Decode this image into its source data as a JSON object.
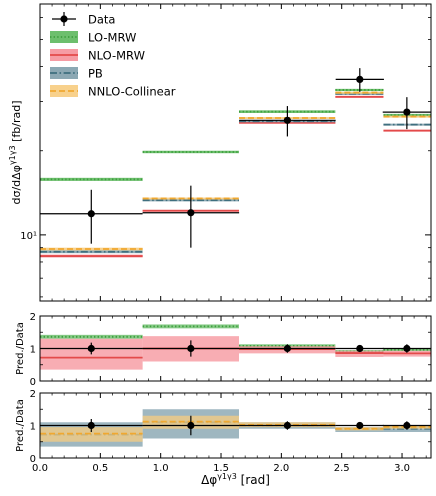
{
  "chart_data": {
    "type": "line",
    "title": "",
    "xlabel": "Δφ^{γ1γ3} [rad]",
    "bins": [
      [
        0.0,
        0.8505
      ],
      [
        0.8505,
        1.649
      ],
      [
        1.649,
        2.4475
      ],
      [
        2.4475,
        2.846
      ],
      [
        2.846,
        3.24
      ]
    ],
    "xlim": [
      0.0,
      3.24
    ],
    "xticks": [
      "0.0",
      "0.5",
      "1.0",
      "1.5",
      "2.0",
      "2.5",
      "3.0"
    ],
    "legend": {
      "position": "upper-left",
      "entries": [
        "Data",
        "LO-MRW",
        "NLO-MRW",
        "PB",
        "NNLO-Collinear"
      ]
    },
    "panels": [
      {
        "name": "main",
        "ylabel": "dσ/dΔφ^{γ1γ3} [fb/rad]",
        "yscale": "log",
        "ylim": [
          5.8,
          67
        ],
        "yticks": [
          "10¹"
        ],
        "data": {
          "name": "Data",
          "color": "#000000",
          "x": [
            0.425,
            1.25,
            2.05,
            2.65,
            3.04
          ],
          "y": [
            11.9,
            12.0,
            25.7,
            36.0,
            27.5
          ],
          "yerr_low": [
            2.6,
            3.0,
            3.2,
            3.5,
            3.6
          ],
          "yerr_high": [
            2.6,
            3.0,
            3.2,
            3.5,
            3.6
          ],
          "xerr": [
            0.425,
            0.4,
            0.4,
            0.2,
            0.2
          ]
        },
        "series": [
          {
            "name": "LO-MRW",
            "color": "#3e9e3e",
            "linestyle": "dotted",
            "band_color": "#5db85d",
            "values": [
              15.8,
              19.8,
              27.6,
              33.0,
              26.8
            ],
            "band": [
              [
                15.6,
                16.0
              ],
              [
                19.6,
                20.0
              ],
              [
                27.3,
                27.9
              ],
              [
                32.7,
                33.3
              ],
              [
                26.5,
                27.1
              ]
            ]
          },
          {
            "name": "NLO-MRW",
            "color": "#e34a4a",
            "linestyle": "solid",
            "band_color": "#f5919a",
            "values": [
              8.4,
              12.2,
              25.2,
              31.2,
              23.6
            ],
            "band": [
              [
                8.3,
                8.5
              ],
              [
                12.1,
                12.3
              ],
              [
                25.0,
                25.4
              ],
              [
                31.0,
                31.4
              ],
              [
                23.4,
                23.8
              ]
            ]
          },
          {
            "name": "PB",
            "color": "#3f6f7f",
            "linestyle": "dashdot",
            "band_color": "#7f9fab",
            "values": [
              8.7,
              13.3,
              25.5,
              32.0,
              24.8
            ],
            "band": [
              [
                8.6,
                8.8
              ],
              [
                13.2,
                13.4
              ],
              [
                25.3,
                25.7
              ],
              [
                31.8,
                32.2
              ],
              [
                24.6,
                25.0
              ]
            ]
          },
          {
            "name": "NNLO-Collinear",
            "color": "#f0a830",
            "linestyle": "dashed",
            "band_color": "#f7cc80",
            "values": [
              8.9,
              13.5,
              26.2,
              32.3,
              26.5
            ],
            "band": [
              [
                8.8,
                9.0
              ],
              [
                13.4,
                13.6
              ],
              [
                26.0,
                26.4
              ],
              [
                32.1,
                32.5
              ],
              [
                26.3,
                26.7
              ]
            ]
          }
        ]
      },
      {
        "name": "ratio-1",
        "ylabel": "Pred./Data",
        "ylim": [
          0,
          2
        ],
        "yticks": [
          "0",
          "1",
          "2"
        ],
        "data": {
          "x": [
            0.425,
            1.25,
            2.05,
            2.65,
            3.04
          ],
          "y": [
            1.0,
            1.0,
            1.0,
            1.0,
            1.0
          ],
          "yerr": [
            0.18,
            0.25,
            0.13,
            0.1,
            0.13
          ],
          "xerr": [
            0.425,
            0.4,
            0.4,
            0.2,
            0.2
          ]
        },
        "series": [
          {
            "name": "LO-MRW",
            "color": "#3e9e3e",
            "linestyle": "dotted",
            "band_color": "#5db85d",
            "values": [
              1.36,
              1.68,
              1.08,
              0.91,
              0.96
            ],
            "band": [
              [
                1.3,
                1.42
              ],
              [
                1.62,
                1.74
              ],
              [
                1.03,
                1.13
              ],
              [
                0.87,
                0.95
              ],
              [
                0.92,
                1.0
              ]
            ]
          },
          {
            "name": "NLO-MRW",
            "color": "#e34a4a",
            "linestyle": "solid",
            "band_color": "#f5919a",
            "values": [
              0.72,
              1.0,
              0.98,
              0.86,
              0.85
            ],
            "band": [
              [
                0.35,
                1.3
              ],
              [
                0.6,
                1.38
              ],
              [
                0.85,
                1.07
              ],
              [
                0.74,
                0.93
              ],
              [
                0.75,
                0.93
              ]
            ]
          }
        ]
      },
      {
        "name": "ratio-2",
        "ylabel": "Pred./Data",
        "ylim": [
          0,
          2
        ],
        "yticks": [
          "0",
          "1",
          "2"
        ],
        "data": {
          "x": [
            0.425,
            1.25,
            2.05,
            2.65,
            3.04
          ],
          "y": [
            1.0,
            1.0,
            1.0,
            1.0,
            1.0
          ],
          "yerr": [
            0.2,
            0.3,
            0.13,
            0.1,
            0.13
          ],
          "xerr": [
            0.425,
            0.4,
            0.4,
            0.2,
            0.2
          ]
        },
        "series": [
          {
            "name": "PB",
            "color": "#3f6f7f",
            "linestyle": "dashdot",
            "band_color": "#7f9fab",
            "values": [
              0.72,
              1.1,
              1.0,
              0.89,
              0.9
            ],
            "band": [
              [
                0.35,
                1.1
              ],
              [
                0.6,
                1.5
              ],
              [
                0.9,
                1.1
              ],
              [
                0.8,
                0.95
              ],
              [
                0.8,
                1.0
              ]
            ]
          },
          {
            "name": "NNLO-Collinear",
            "color": "#f0a830",
            "linestyle": "dashed",
            "band_color": "#f7cc80",
            "values": [
              0.75,
              1.12,
              1.02,
              0.9,
              0.96
            ],
            "band": [
              [
                0.5,
                0.95
              ],
              [
                0.9,
                1.3
              ],
              [
                0.95,
                1.1
              ],
              [
                0.85,
                0.95
              ],
              [
                0.9,
                1.0
              ]
            ]
          }
        ]
      }
    ]
  }
}
